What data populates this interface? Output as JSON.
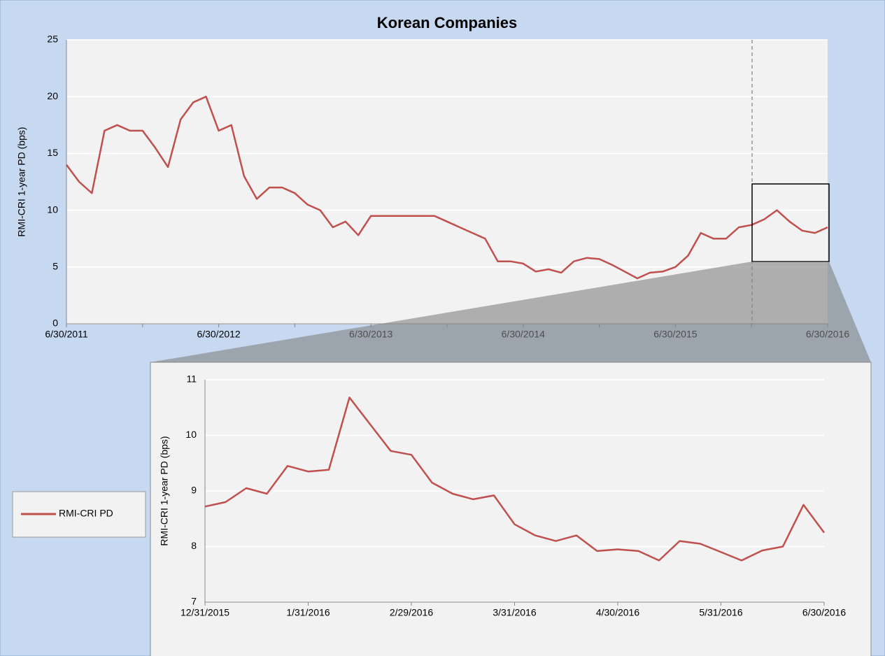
{
  "chart_data": [
    {
      "type": "line",
      "title": "Korean Companies",
      "y_label": "RMI-CRI 1-year PD (bps)",
      "categories": [
        "6/30/2011",
        null,
        null,
        null,
        null,
        null,
        null,
        null,
        null,
        null,
        null,
        null,
        "6/30/2012",
        null,
        null,
        null,
        null,
        null,
        null,
        null,
        null,
        null,
        null,
        null,
        "6/30/2013",
        null,
        null,
        null,
        null,
        null,
        null,
        null,
        null,
        null,
        null,
        null,
        "6/30/2014",
        null,
        null,
        null,
        null,
        null,
        null,
        null,
        null,
        null,
        null,
        null,
        "6/30/2015",
        null,
        null,
        null,
        null,
        null,
        null,
        null,
        null,
        null,
        null,
        null,
        "6/30/2016"
      ],
      "series": [
        {
          "name": "RMI-CRI PD",
          "color": "#c0504d",
          "values": [
            14,
            12.5,
            11.5,
            17,
            17.5,
            17,
            17,
            15.5,
            13.8,
            18,
            19.5,
            20,
            17,
            17.5,
            13,
            11,
            12,
            12,
            11.5,
            10.5,
            10,
            8.5,
            9,
            7.8,
            9.5,
            9.5,
            9.5,
            9.5,
            9.5,
            9.5,
            9,
            8.5,
            8,
            7.5,
            5.5,
            5.5,
            5.3,
            4.6,
            4.8,
            4.5,
            5.5,
            5.8,
            5.7,
            5.2,
            4.6,
            4.0,
            4.5,
            4.6,
            5,
            6,
            8,
            7.5,
            7.5,
            8.5,
            8.7,
            9.2,
            10,
            9,
            8.2,
            8,
            8.5
          ]
        }
      ],
      "ylim": [
        0,
        25
      ],
      "yticks": [
        0,
        5,
        10,
        15,
        20,
        25
      ],
      "grid": true
    },
    {
      "type": "line",
      "y_label": "RMI-CRI 1-year PD (bps)",
      "categories": [
        "12/31/2015",
        null,
        null,
        null,
        null,
        "1/31/2016",
        null,
        null,
        null,
        null,
        "2/29/2016",
        null,
        null,
        null,
        null,
        "3/31/2016",
        null,
        null,
        null,
        null,
        "4/30/2016",
        null,
        null,
        null,
        null,
        "5/31/2016",
        null,
        null,
        null,
        null,
        "6/30/2016"
      ],
      "series": [
        {
          "color": "#c0504d",
          "values": [
            8.72,
            8.8,
            9.05,
            8.95,
            9.45,
            9.35,
            9.38,
            10.68,
            10.2,
            9.72,
            9.65,
            9.15,
            8.95,
            8.85,
            8.92,
            8.4,
            8.2,
            8.1,
            8.2,
            7.92,
            7.95,
            7.92,
            7.75,
            8.1,
            8.05,
            7.9,
            7.75,
            7.93,
            8.0,
            8.75,
            8.25
          ]
        }
      ],
      "ylim": [
        7,
        11
      ],
      "yticks": [
        7,
        8,
        9,
        10,
        11
      ],
      "grid": true
    }
  ]
}
